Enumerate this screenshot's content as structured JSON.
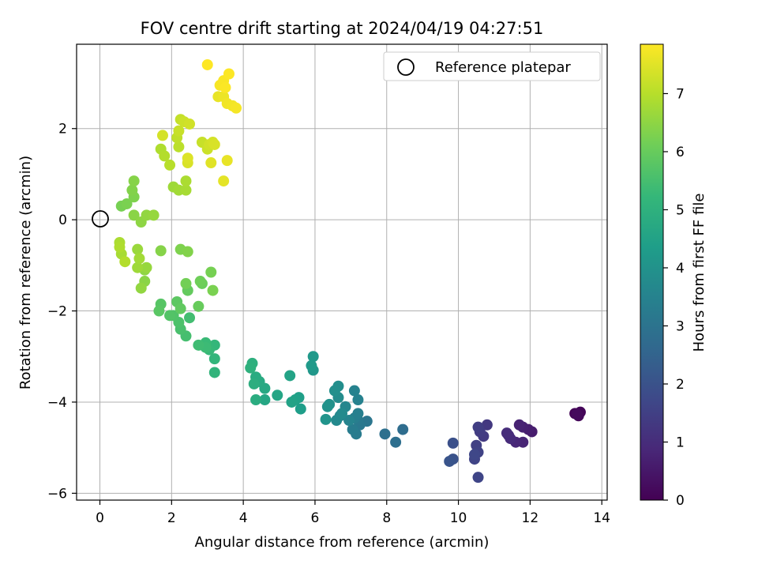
{
  "chart_data": {
    "type": "scatter",
    "title": "FOV centre drift starting at 2024/04/19 04:27:51",
    "xlabel": "Angular distance from reference (arcmin)",
    "ylabel": "Rotation from reference (arcmin)",
    "xlim": [
      -0.65,
      14.15
    ],
    "ylim": [
      -6.15,
      3.85
    ],
    "xticks": [
      0,
      2,
      4,
      6,
      8,
      10,
      12,
      14
    ],
    "xtick_labels": [
      "0",
      "2",
      "4",
      "6",
      "8",
      "10",
      "12",
      "14"
    ],
    "yticks": [
      -6,
      -4,
      -2,
      0,
      2
    ],
    "ytick_labels": [
      "−6",
      "−4",
      "−2",
      "0",
      "2"
    ],
    "grid": true,
    "legend": {
      "placement": "top-right",
      "entries": [
        "Reference platepar"
      ]
    },
    "reference_point": {
      "x": 0,
      "y": 0
    },
    "colorbar": {
      "label": "Hours from first FF file",
      "cmap": "viridis",
      "range": [
        0,
        7.85
      ],
      "ticks": [
        0,
        1,
        2,
        3,
        4,
        5,
        6,
        7
      ],
      "tick_labels": [
        "0",
        "1",
        "2",
        "3",
        "4",
        "5",
        "6",
        "7"
      ],
      "stops": [
        "#440154",
        "#482878",
        "#3e4989",
        "#31688e",
        "#26828e",
        "#1f9e89",
        "#35b779",
        "#6ece58",
        "#b5de2b",
        "#fde725"
      ]
    },
    "series": [
      {
        "points": [
          [
            13.25,
            -4.25,
            0.05
          ],
          [
            13.4,
            -4.22,
            0.1
          ],
          [
            13.35,
            -4.3,
            0.15
          ],
          [
            13.3,
            -4.26,
            0.2
          ],
          [
            12.05,
            -4.65,
            0.6
          ],
          [
            11.95,
            -4.6,
            0.65
          ],
          [
            11.8,
            -4.55,
            0.7
          ],
          [
            11.7,
            -4.5,
            0.75
          ],
          [
            11.8,
            -4.88,
            0.8
          ],
          [
            11.6,
            -4.88,
            0.85
          ],
          [
            11.4,
            -4.73,
            0.9
          ],
          [
            11.45,
            -4.8,
            0.95
          ],
          [
            11.35,
            -4.68,
            1.0
          ],
          [
            10.8,
            -4.5,
            1.3
          ],
          [
            10.7,
            -4.75,
            1.35
          ],
          [
            10.6,
            -4.65,
            1.4
          ],
          [
            10.55,
            -4.55,
            1.45
          ],
          [
            10.5,
            -4.95,
            1.5
          ],
          [
            10.55,
            -5.1,
            1.55
          ],
          [
            10.45,
            -5.25,
            1.6
          ],
          [
            10.55,
            -5.65,
            1.65
          ],
          [
            10.45,
            -5.15,
            1.7
          ],
          [
            9.85,
            -4.9,
            1.95
          ],
          [
            9.85,
            -5.25,
            2.0
          ],
          [
            9.75,
            -5.3,
            2.05
          ],
          [
            8.45,
            -4.6,
            2.8
          ],
          [
            8.25,
            -4.88,
            2.85
          ],
          [
            7.95,
            -4.7,
            2.9
          ],
          [
            7.45,
            -4.42,
            3.1
          ],
          [
            7.25,
            -4.5,
            3.15
          ],
          [
            7.2,
            -4.4,
            3.2
          ],
          [
            7.15,
            -4.7,
            3.25
          ],
          [
            7.05,
            -4.6,
            3.3
          ],
          [
            7.1,
            -4.35,
            3.35
          ],
          [
            7.2,
            -4.25,
            3.4
          ],
          [
            7.2,
            -3.95,
            3.45
          ],
          [
            7.1,
            -3.75,
            3.5
          ],
          [
            6.95,
            -4.4,
            3.55
          ],
          [
            6.85,
            -4.1,
            3.6
          ],
          [
            6.7,
            -4.3,
            3.65
          ],
          [
            6.6,
            -4.4,
            3.7
          ],
          [
            6.75,
            -4.25,
            3.75
          ],
          [
            6.65,
            -3.9,
            3.8
          ],
          [
            6.65,
            -3.65,
            3.85
          ],
          [
            6.55,
            -3.75,
            3.9
          ],
          [
            6.4,
            -4.05,
            3.95
          ],
          [
            6.35,
            -4.1,
            4.0
          ],
          [
            6.3,
            -4.38,
            4.05
          ],
          [
            5.95,
            -3.3,
            4.15
          ],
          [
            5.95,
            -3.0,
            4.2
          ],
          [
            5.9,
            -3.2,
            4.25
          ],
          [
            5.6,
            -4.15,
            4.35
          ],
          [
            5.55,
            -3.9,
            4.4
          ],
          [
            5.45,
            -3.95,
            4.45
          ],
          [
            5.35,
            -4.0,
            4.5
          ],
          [
            5.3,
            -3.42,
            4.55
          ],
          [
            4.95,
            -3.85,
            4.6
          ],
          [
            4.6,
            -3.95,
            4.65
          ],
          [
            4.6,
            -3.7,
            4.7
          ],
          [
            4.45,
            -3.55,
            4.75
          ],
          [
            4.35,
            -3.45,
            4.8
          ],
          [
            4.35,
            -3.95,
            4.85
          ],
          [
            4.3,
            -3.6,
            4.9
          ],
          [
            4.25,
            -3.15,
            4.95
          ],
          [
            4.2,
            -3.25,
            5.0
          ],
          [
            3.2,
            -3.35,
            5.1
          ],
          [
            3.2,
            -3.05,
            5.15
          ],
          [
            3.2,
            -2.75,
            5.2
          ],
          [
            3.05,
            -2.85,
            5.25
          ],
          [
            2.95,
            -2.7,
            5.3
          ],
          [
            2.95,
            -2.8,
            5.35
          ],
          [
            2.75,
            -2.75,
            5.4
          ],
          [
            2.5,
            -2.15,
            5.45
          ],
          [
            2.4,
            -2.55,
            5.5
          ],
          [
            2.25,
            -2.4,
            5.55
          ],
          [
            2.2,
            -2.25,
            5.6
          ],
          [
            2.05,
            -2.1,
            5.65
          ],
          [
            1.95,
            -2.1,
            5.7
          ],
          [
            1.7,
            -1.85,
            5.75
          ],
          [
            1.65,
            -2.0,
            5.8
          ],
          [
            2.15,
            -1.8,
            5.85
          ],
          [
            2.25,
            -1.95,
            5.9
          ],
          [
            2.45,
            -1.55,
            5.95
          ],
          [
            2.75,
            -1.9,
            6.0
          ],
          [
            2.85,
            -1.4,
            6.05
          ],
          [
            2.8,
            -1.35,
            6.1
          ],
          [
            2.4,
            -1.4,
            6.15
          ],
          [
            3.1,
            -1.15,
            6.2
          ],
          [
            3.15,
            -1.55,
            6.25
          ],
          [
            2.25,
            -0.65,
            6.3
          ],
          [
            2.45,
            -0.7,
            6.35
          ],
          [
            1.7,
            -0.68,
            6.4
          ],
          [
            1.25,
            -1.35,
            6.45
          ],
          [
            1.25,
            -1.1,
            6.5
          ],
          [
            1.15,
            -1.5,
            6.55
          ],
          [
            1.3,
            -1.05,
            6.6
          ],
          [
            1.05,
            -0.65,
            6.65
          ],
          [
            1.05,
            -1.05,
            6.7
          ],
          [
            1.1,
            -0.85,
            6.75
          ],
          [
            0.6,
            -0.75,
            6.8
          ],
          [
            0.55,
            -0.5,
            6.85
          ],
          [
            0.55,
            -0.6,
            6.9
          ],
          [
            0.7,
            -0.92,
            6.95
          ],
          [
            0.6,
            0.3,
            6.2
          ],
          [
            0.75,
            0.35,
            6.25
          ],
          [
            0.95,
            0.5,
            6.3
          ],
          [
            0.9,
            0.65,
            6.35
          ],
          [
            0.95,
            0.85,
            6.4
          ],
          [
            0.95,
            0.1,
            6.45
          ],
          [
            1.15,
            -0.05,
            6.5
          ],
          [
            1.3,
            0.1,
            6.55
          ],
          [
            1.5,
            0.1,
            6.6
          ],
          [
            2.05,
            0.72,
            6.7
          ],
          [
            2.2,
            0.65,
            6.75
          ],
          [
            2.4,
            0.65,
            6.8
          ],
          [
            2.4,
            0.85,
            6.85
          ],
          [
            1.7,
            1.55,
            6.9
          ],
          [
            1.8,
            1.4,
            6.95
          ],
          [
            1.95,
            1.2,
            7.0
          ],
          [
            2.2,
            1.6,
            7.05
          ],
          [
            2.15,
            1.8,
            7.1
          ],
          [
            2.25,
            2.2,
            7.15
          ],
          [
            2.2,
            1.95,
            7.2
          ],
          [
            2.35,
            2.15,
            7.25
          ],
          [
            2.5,
            2.1,
            7.3
          ],
          [
            1.75,
            1.85,
            7.35
          ],
          [
            2.45,
            1.25,
            7.4
          ],
          [
            2.45,
            1.35,
            7.45
          ],
          [
            3.1,
            1.25,
            7.5
          ],
          [
            3.45,
            0.85,
            7.55
          ],
          [
            3.55,
            1.3,
            7.6
          ],
          [
            2.85,
            1.7,
            7.2
          ],
          [
            3.0,
            1.55,
            7.25
          ],
          [
            3.05,
            1.65,
            7.3
          ],
          [
            3.15,
            1.7,
            7.35
          ],
          [
            3.2,
            1.65,
            7.4
          ],
          [
            3.3,
            2.7,
            7.6
          ],
          [
            3.45,
            2.7,
            7.65
          ],
          [
            3.55,
            2.55,
            7.7
          ],
          [
            3.7,
            2.5,
            7.72
          ],
          [
            3.8,
            2.45,
            7.75
          ],
          [
            3.35,
            2.95,
            7.78
          ],
          [
            3.45,
            3.05,
            7.8
          ],
          [
            3.5,
            2.9,
            7.82
          ],
          [
            3.6,
            3.2,
            7.84
          ],
          [
            3.0,
            3.4,
            7.85
          ]
        ]
      }
    ]
  }
}
